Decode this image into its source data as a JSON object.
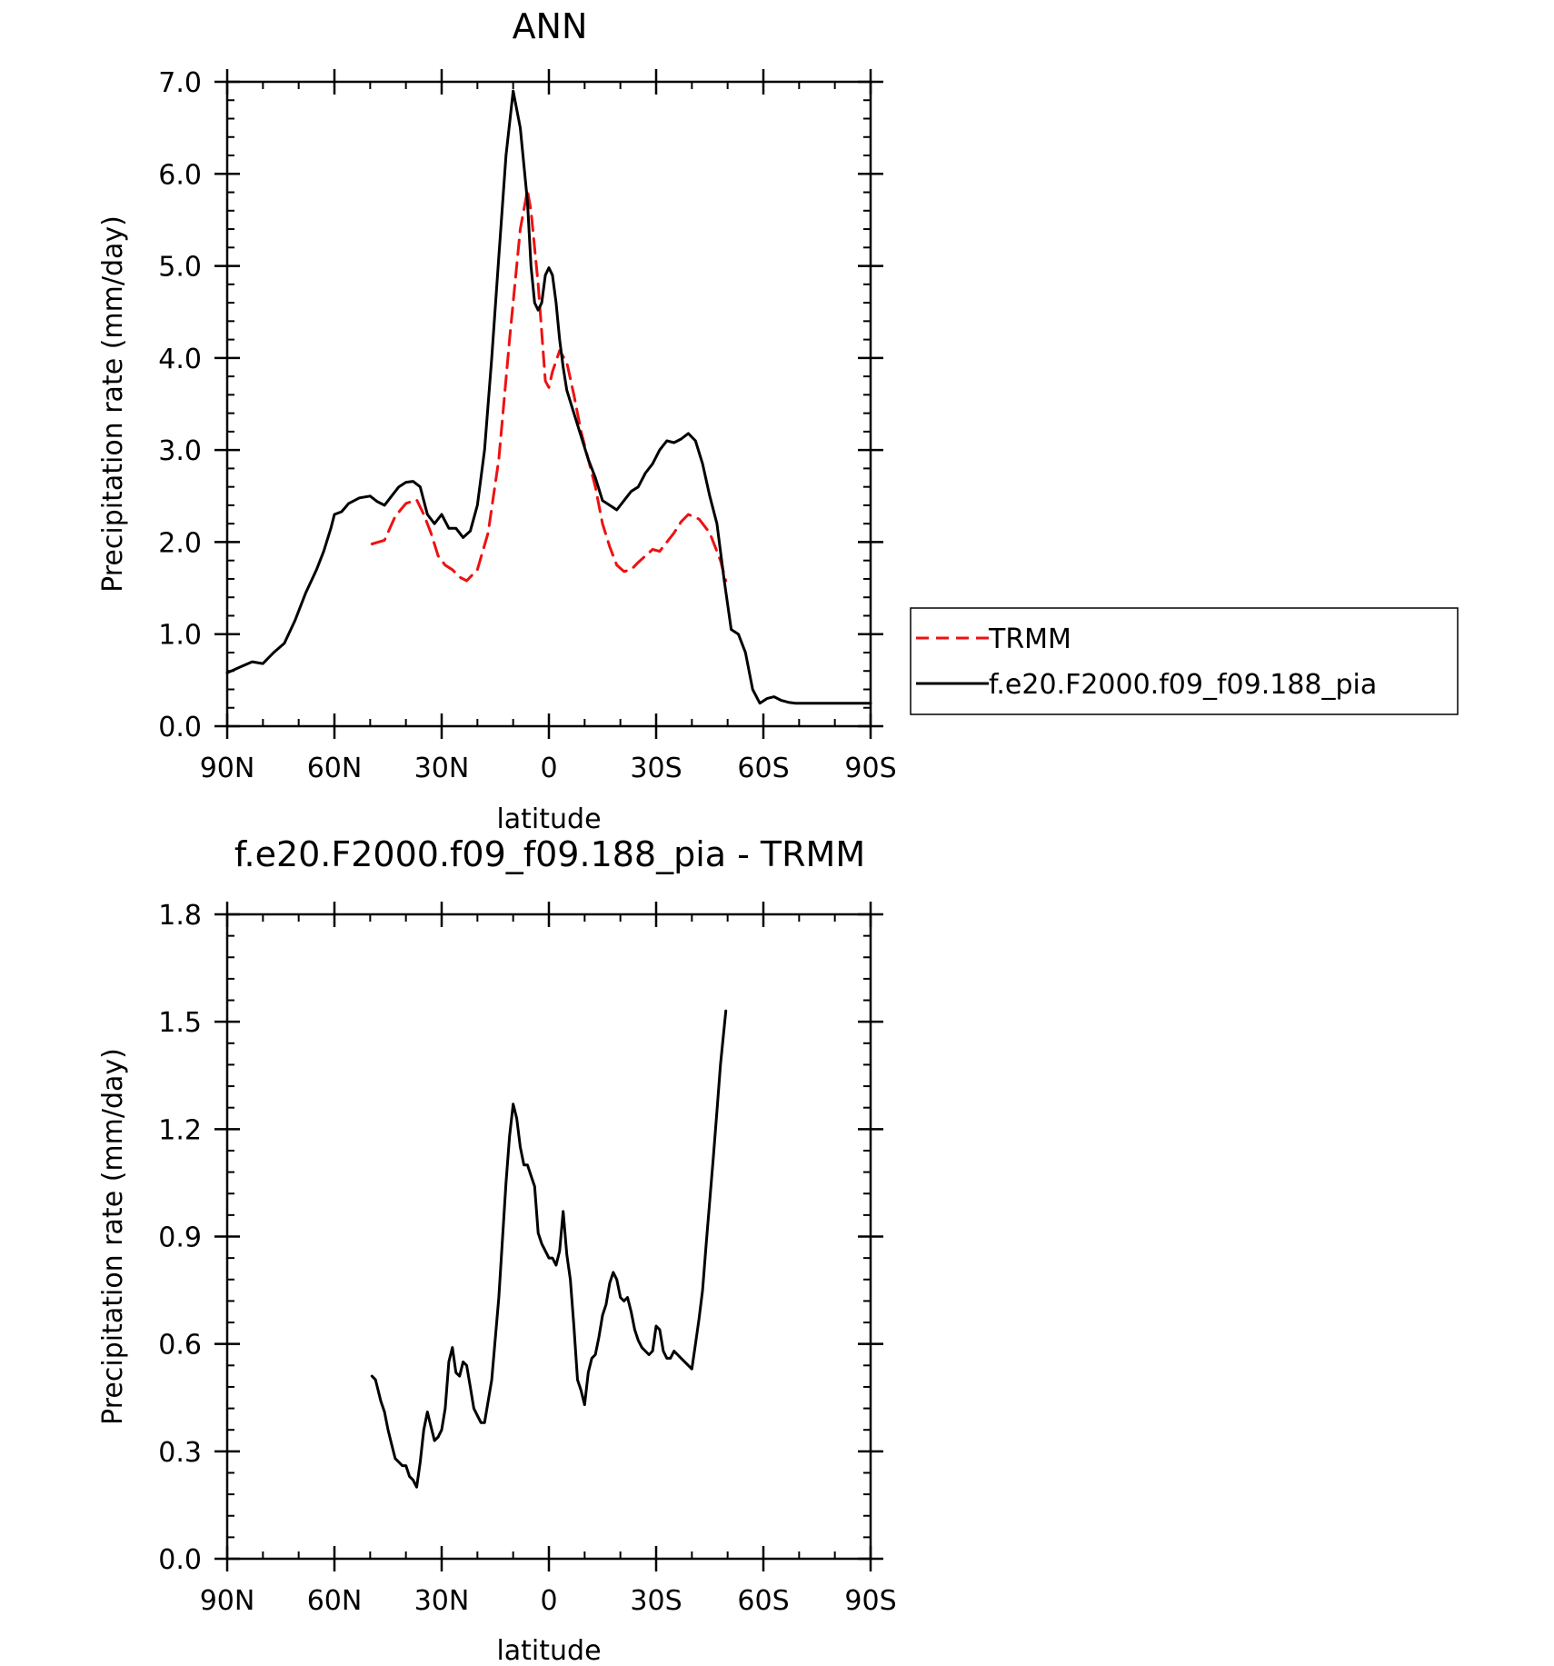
{
  "chart_data": [
    {
      "type": "line",
      "title": "ANN",
      "xlabel": "latitude",
      "ylabel": "Precipitation rate (mm/day)",
      "xlim": [
        90,
        -90
      ],
      "ylim": [
        0,
        7
      ],
      "x_ticks": [
        90,
        60,
        30,
        0,
        -30,
        -60,
        -90
      ],
      "x_tick_labels": [
        "90N",
        "60N",
        "30N",
        "0",
        "30S",
        "60S",
        "90S"
      ],
      "y_ticks": [
        0,
        1,
        2,
        3,
        4,
        5,
        6,
        7
      ],
      "y_tick_labels": [
        "0.0",
        "1.0",
        "2.0",
        "3.0",
        "4.0",
        "5.0",
        "6.0",
        "7.0"
      ],
      "grid": false,
      "legend": "right-middle",
      "series": [
        {
          "name": "TRMM",
          "color": "#ee1111",
          "style": "dashed",
          "x": [
            49.5,
            46,
            43,
            40,
            37,
            35,
            33,
            31,
            29,
            27,
            25,
            23,
            20,
            17,
            14,
            11,
            8,
            6,
            5,
            3,
            1,
            0,
            -1,
            -3,
            -5,
            -7,
            -9,
            -11,
            -13,
            -15,
            -17,
            -19,
            -21,
            -23,
            -25,
            -27,
            -29,
            -31,
            -33,
            -35,
            -37,
            -39,
            -42,
            -45,
            -48,
            -49.5
          ],
          "y": [
            1.98,
            2.02,
            2.28,
            2.42,
            2.46,
            2.3,
            2.1,
            1.85,
            1.75,
            1.7,
            1.62,
            1.58,
            1.7,
            2.1,
            2.9,
            4.2,
            5.4,
            5.82,
            5.6,
            4.8,
            3.75,
            3.68,
            3.85,
            4.08,
            3.95,
            3.6,
            3.2,
            2.9,
            2.6,
            2.2,
            1.95,
            1.75,
            1.68,
            1.7,
            1.78,
            1.85,
            1.92,
            1.9,
            2.0,
            2.1,
            2.22,
            2.3,
            2.25,
            2.1,
            1.8,
            1.58
          ]
        },
        {
          "name": "f.e20.F2000.f09_f09.188_pia",
          "color": "#000000",
          "style": "solid",
          "x": [
            90,
            86,
            83,
            80,
            77,
            74,
            71,
            68,
            65,
            63,
            61,
            60,
            58,
            56,
            53,
            50,
            48,
            46,
            44,
            42,
            40,
            38,
            36,
            34,
            32,
            30,
            28,
            26,
            24,
            22,
            20,
            18,
            16,
            14,
            12,
            10,
            8,
            6,
            5,
            4,
            3,
            2,
            1,
            0,
            -1,
            -2,
            -3,
            -4,
            -5,
            -7,
            -9,
            -11,
            -13,
            -15,
            -17,
            -19,
            -21,
            -23,
            -25,
            -27,
            -29,
            -31,
            -33,
            -35,
            -37,
            -39,
            -41,
            -43,
            -45,
            -47,
            -49,
            -51,
            -53,
            -55,
            -57,
            -59,
            -61,
            -63,
            -65,
            -67,
            -69,
            -71,
            -73,
            -75,
            -77,
            -79,
            -81,
            -83,
            -85,
            -87,
            -90
          ],
          "y": [
            0.58,
            0.65,
            0.7,
            0.68,
            0.8,
            0.9,
            1.15,
            1.45,
            1.7,
            1.9,
            2.15,
            2.3,
            2.33,
            2.42,
            2.48,
            2.5,
            2.44,
            2.4,
            2.5,
            2.6,
            2.65,
            2.66,
            2.6,
            2.3,
            2.2,
            2.3,
            2.15,
            2.15,
            2.05,
            2.12,
            2.4,
            3.0,
            4.0,
            5.1,
            6.2,
            6.9,
            6.5,
            5.7,
            5.0,
            4.6,
            4.52,
            4.6,
            4.9,
            4.98,
            4.9,
            4.6,
            4.2,
            3.9,
            3.65,
            3.4,
            3.15,
            2.9,
            2.7,
            2.45,
            2.4,
            2.35,
            2.45,
            2.55,
            2.6,
            2.75,
            2.85,
            3.0,
            3.1,
            3.08,
            3.12,
            3.18,
            3.1,
            2.85,
            2.5,
            2.2,
            1.6,
            1.05,
            1.0,
            0.8,
            0.4,
            0.25,
            0.3,
            0.32,
            0.28,
            0.26,
            0.25,
            0.25,
            0.25,
            0.25,
            0.25,
            0.25,
            0.25,
            0.25,
            0.25,
            0.25,
            0.25
          ]
        }
      ]
    },
    {
      "type": "line",
      "title": "f.e20.F2000.f09_f09.188_pia - TRMM",
      "xlabel": "latitude",
      "ylabel": "Precipitation rate (mm/day)",
      "xlim": [
        90,
        -90
      ],
      "ylim": [
        0,
        1.8
      ],
      "x_ticks": [
        90,
        60,
        30,
        0,
        -30,
        -60,
        -90
      ],
      "x_tick_labels": [
        "90N",
        "60N",
        "30N",
        "0",
        "30S",
        "60S",
        "90S"
      ],
      "y_ticks": [
        0,
        0.3,
        0.6,
        0.9,
        1.2,
        1.5,
        1.8
      ],
      "y_tick_labels": [
        "0.0",
        "0.3",
        "0.6",
        "0.9",
        "1.2",
        "1.5",
        "1.8"
      ],
      "grid": false,
      "series": [
        {
          "color": "#000000",
          "style": "solid",
          "x": [
            49.5,
            48.5,
            47,
            46,
            45,
            44,
            43,
            41,
            40,
            39,
            38,
            37,
            36,
            35,
            34,
            33,
            32,
            31,
            30,
            29,
            28,
            27,
            26,
            25,
            24,
            23,
            22,
            21,
            20,
            19,
            18,
            16,
            14,
            12,
            11,
            10,
            9,
            8,
            7,
            6,
            5,
            4,
            3,
            2,
            1,
            0,
            -1,
            -2,
            -3,
            -4,
            -5,
            -6,
            -7,
            -8,
            -9,
            -10,
            -11,
            -12,
            -13,
            -14,
            -15,
            -16,
            -17,
            -18,
            -19,
            -20,
            -21,
            -22,
            -23,
            -24,
            -25,
            -26,
            -27,
            -28,
            -29,
            -30,
            -31,
            -32,
            -33,
            -34,
            -35,
            -36,
            -37,
            -38,
            -39,
            -40,
            -41,
            -42,
            -43,
            -44,
            -45,
            -46,
            -47,
            -48,
            -49.5
          ],
          "y": [
            0.51,
            0.5,
            0.44,
            0.41,
            0.36,
            0.32,
            0.28,
            0.26,
            0.26,
            0.23,
            0.22,
            0.2,
            0.27,
            0.36,
            0.41,
            0.37,
            0.33,
            0.34,
            0.36,
            0.42,
            0.55,
            0.59,
            0.52,
            0.51,
            0.55,
            0.54,
            0.48,
            0.42,
            0.4,
            0.38,
            0.38,
            0.5,
            0.73,
            1.05,
            1.18,
            1.27,
            1.23,
            1.15,
            1.1,
            1.1,
            1.07,
            1.04,
            0.91,
            0.88,
            0.86,
            0.84,
            0.84,
            0.82,
            0.86,
            0.97,
            0.85,
            0.78,
            0.65,
            0.5,
            0.47,
            0.43,
            0.52,
            0.56,
            0.57,
            0.62,
            0.68,
            0.71,
            0.77,
            0.8,
            0.78,
            0.73,
            0.72,
            0.73,
            0.69,
            0.64,
            0.61,
            0.59,
            0.58,
            0.57,
            0.58,
            0.65,
            0.64,
            0.58,
            0.56,
            0.56,
            0.58,
            0.57,
            0.56,
            0.55,
            0.54,
            0.53,
            0.6,
            0.67,
            0.75,
            0.88,
            1.0,
            1.12,
            1.25,
            1.38,
            1.53
          ]
        }
      ]
    }
  ]
}
